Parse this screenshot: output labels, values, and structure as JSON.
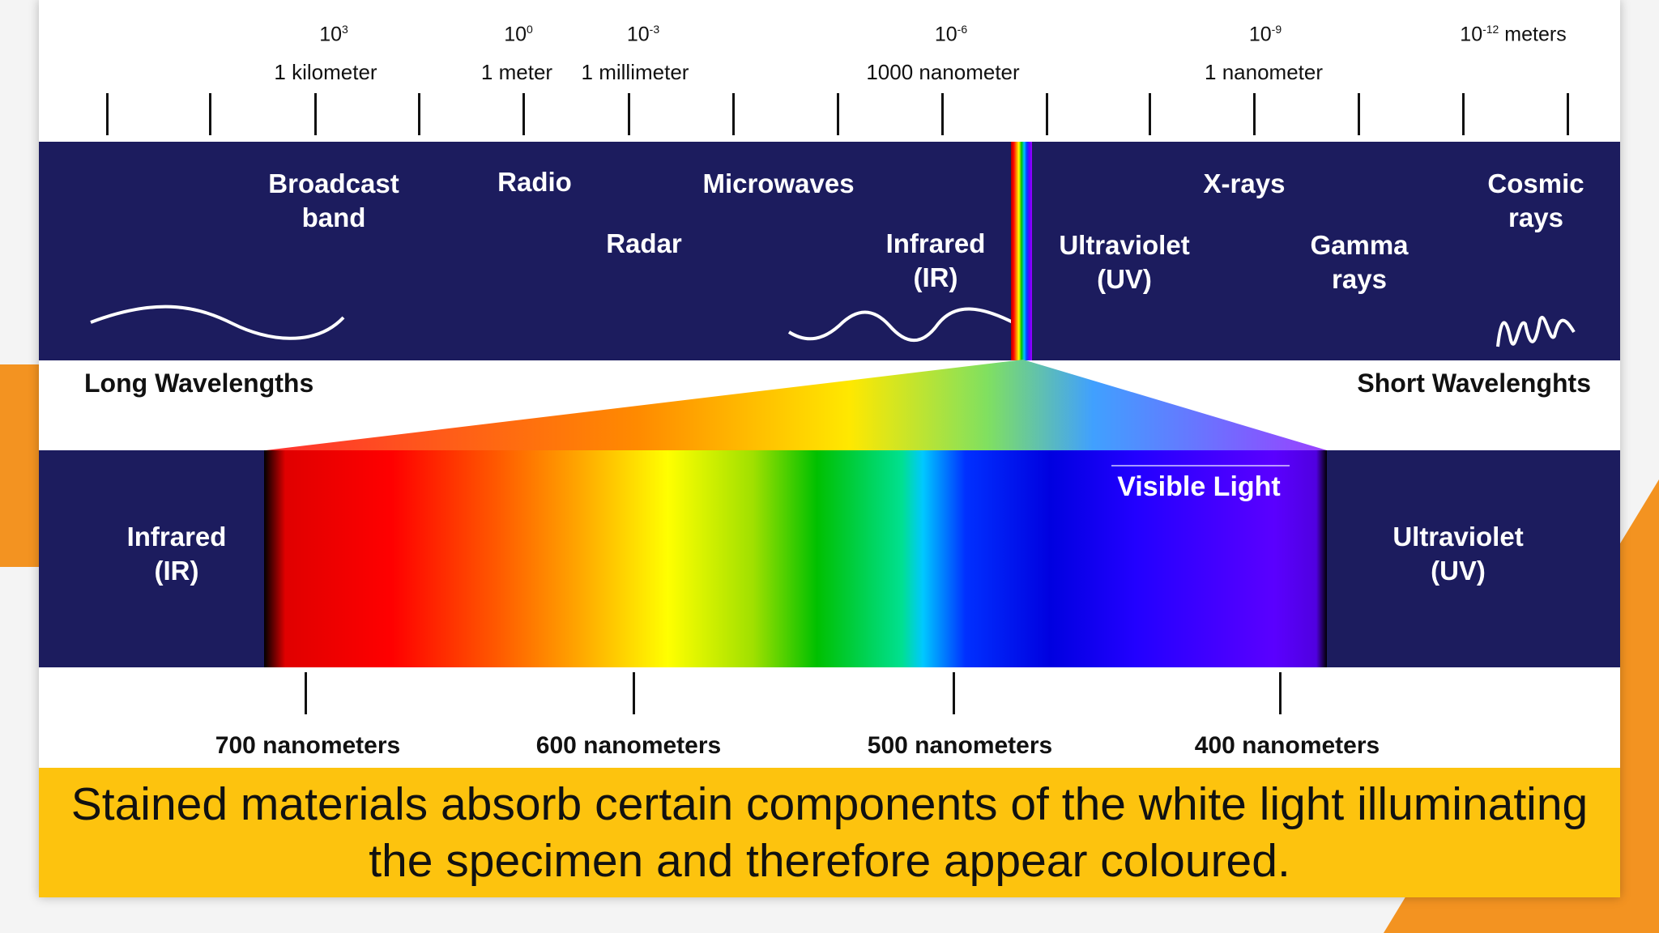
{
  "scale": {
    "exponents": [
      {
        "base": "10",
        "sup": "3",
        "suffix": ""
      },
      {
        "base": "10",
        "sup": "0",
        "suffix": ""
      },
      {
        "base": "10",
        "sup": "-3",
        "suffix": ""
      },
      {
        "base": "10",
        "sup": "-6",
        "suffix": ""
      },
      {
        "base": "10",
        "sup": "-9",
        "suffix": ""
      },
      {
        "base": "10",
        "sup": "-12",
        "suffix": " meters"
      }
    ],
    "unit_labels": [
      "1 kilometer",
      "1 meter",
      "1 millimeter",
      "1000 nanometer",
      "1 nanometer"
    ]
  },
  "bands": {
    "broadcast": "Broadcast\nband",
    "radio": "Radio",
    "microwaves": "Microwaves",
    "radar": "Radar",
    "infrared_top": "Infrared\n(IR)",
    "ultraviolet_top": "Ultraviolet\n(UV)",
    "xrays": "X-rays",
    "gamma": "Gamma\nrays",
    "cosmic": "Cosmic\nrays"
  },
  "wavelength_labels": {
    "long": "Long Wavelengths",
    "short": "Short Wavelenghts"
  },
  "visible": {
    "title": "Visible Light",
    "infrared": "Infrared\n(IR)",
    "ultraviolet": "Ultraviolet\n(UV)",
    "nm_labels": [
      "700 nanometers",
      "600 nanometers",
      "500 nanometers",
      "400 nanometers"
    ]
  },
  "caption": "Stained materials absorb certain components of the white light illuminating the specimen and therefore appear coloured.",
  "colors": {
    "band": "#1c1c5e",
    "caption_bar": "#fdc30e",
    "accent": "#f39321"
  }
}
